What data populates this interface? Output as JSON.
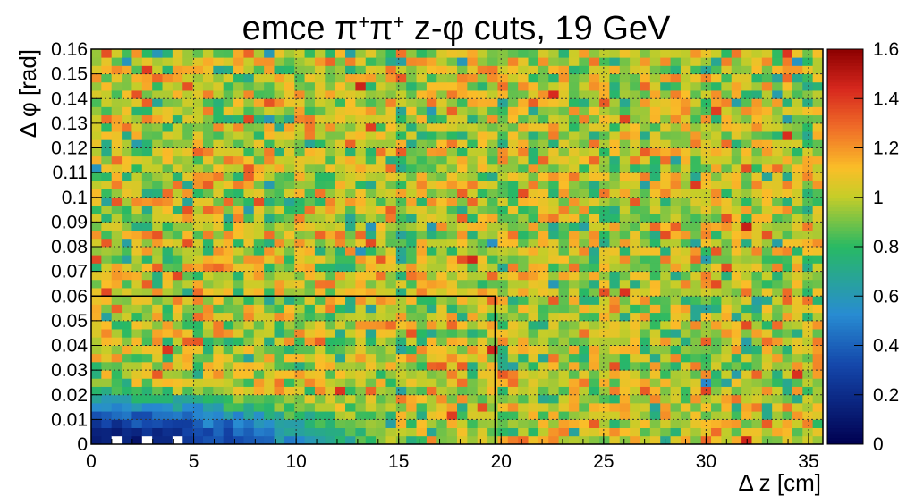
{
  "chart_data": {
    "type": "heatmap",
    "title_parts": [
      "emce ",
      "π",
      "+",
      "π",
      "+",
      "  z-",
      "φ",
      " cuts, 19 GeV"
    ],
    "xlabel": "Δ z [cm]",
    "ylabel": "Δ φ [rad]",
    "xlim": [
      0,
      35.7
    ],
    "ylim": [
      0,
      0.16
    ],
    "zlim": [
      0,
      1.6
    ],
    "x_ticks": [
      "0",
      "5",
      "10",
      "15",
      "20",
      "25",
      "30",
      "35"
    ],
    "y_ticks": [
      "0",
      "0.01",
      "0.02",
      "0.03",
      "0.04",
      "0.05",
      "0.06",
      "0.07",
      "0.08",
      "0.09",
      "0.1",
      "0.11",
      "0.12",
      "0.13",
      "0.14",
      "0.15",
      "0.16"
    ],
    "z_ticks": [
      "0",
      "0.2",
      "0.4",
      "0.6",
      "0.8",
      "1",
      "1.2",
      "1.4",
      "1.6"
    ],
    "grid": true,
    "colormap": "rainbow",
    "bins": {
      "nx": 72,
      "ny": 48
    },
    "background_level": 1.0,
    "cut_region": {
      "dz_max": 19.7,
      "dphi_max": 0.06
    },
    "suppression_region": {
      "dz_max": 15,
      "dphi_max": 0.025,
      "min_value": 0.1
    },
    "colors": {
      "background": "#ffffff",
      "axis": "#000000",
      "grid": "#333333"
    }
  }
}
